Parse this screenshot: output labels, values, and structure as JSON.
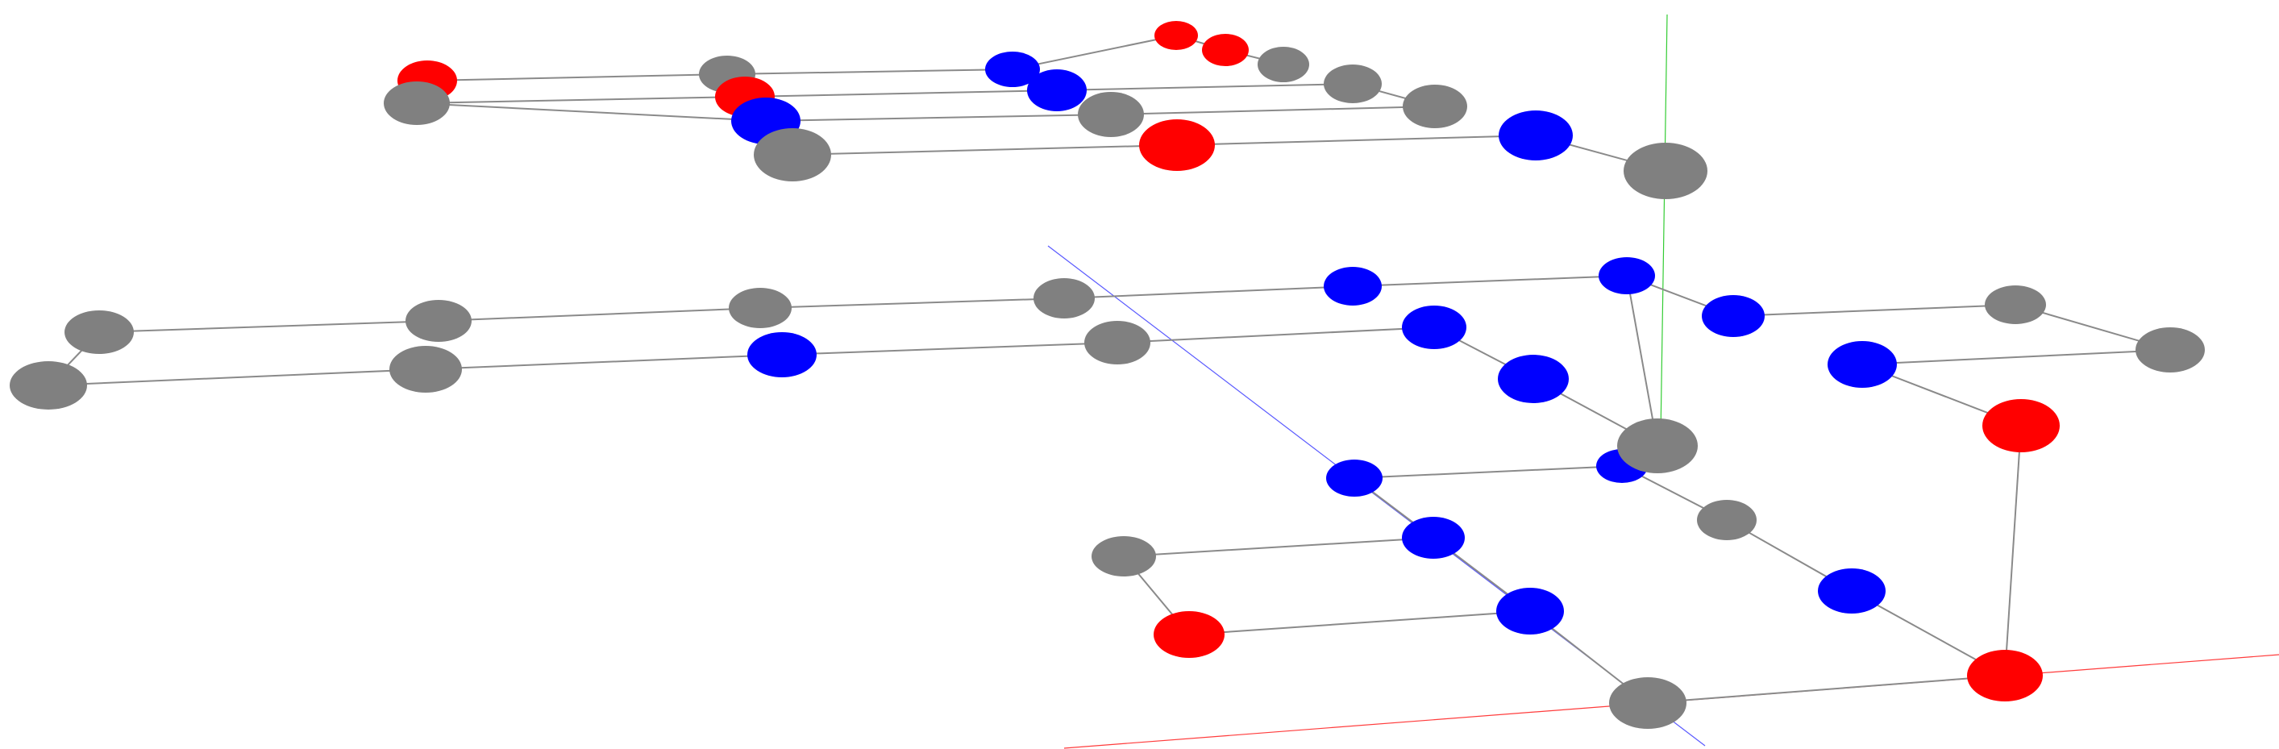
{
  "viewer": {
    "type": "3d-molecular-viewer",
    "background": "#ffffff",
    "axes": [
      {
        "name": "x-axis",
        "color": "#ff3b3b"
      },
      {
        "name": "y-axis",
        "color": "#33cc33"
      },
      {
        "name": "z-axis",
        "color": "#5a5aff"
      }
    ],
    "bond_color": "#8a8a8a",
    "element_colors": {
      "carbon": "#808080",
      "nitrogen": "#0000ff",
      "oxygen": "#ff0000"
    },
    "counts": {
      "atoms": 51,
      "carbon": 25,
      "nitrogen": 17,
      "oxygen": 9
    }
  }
}
